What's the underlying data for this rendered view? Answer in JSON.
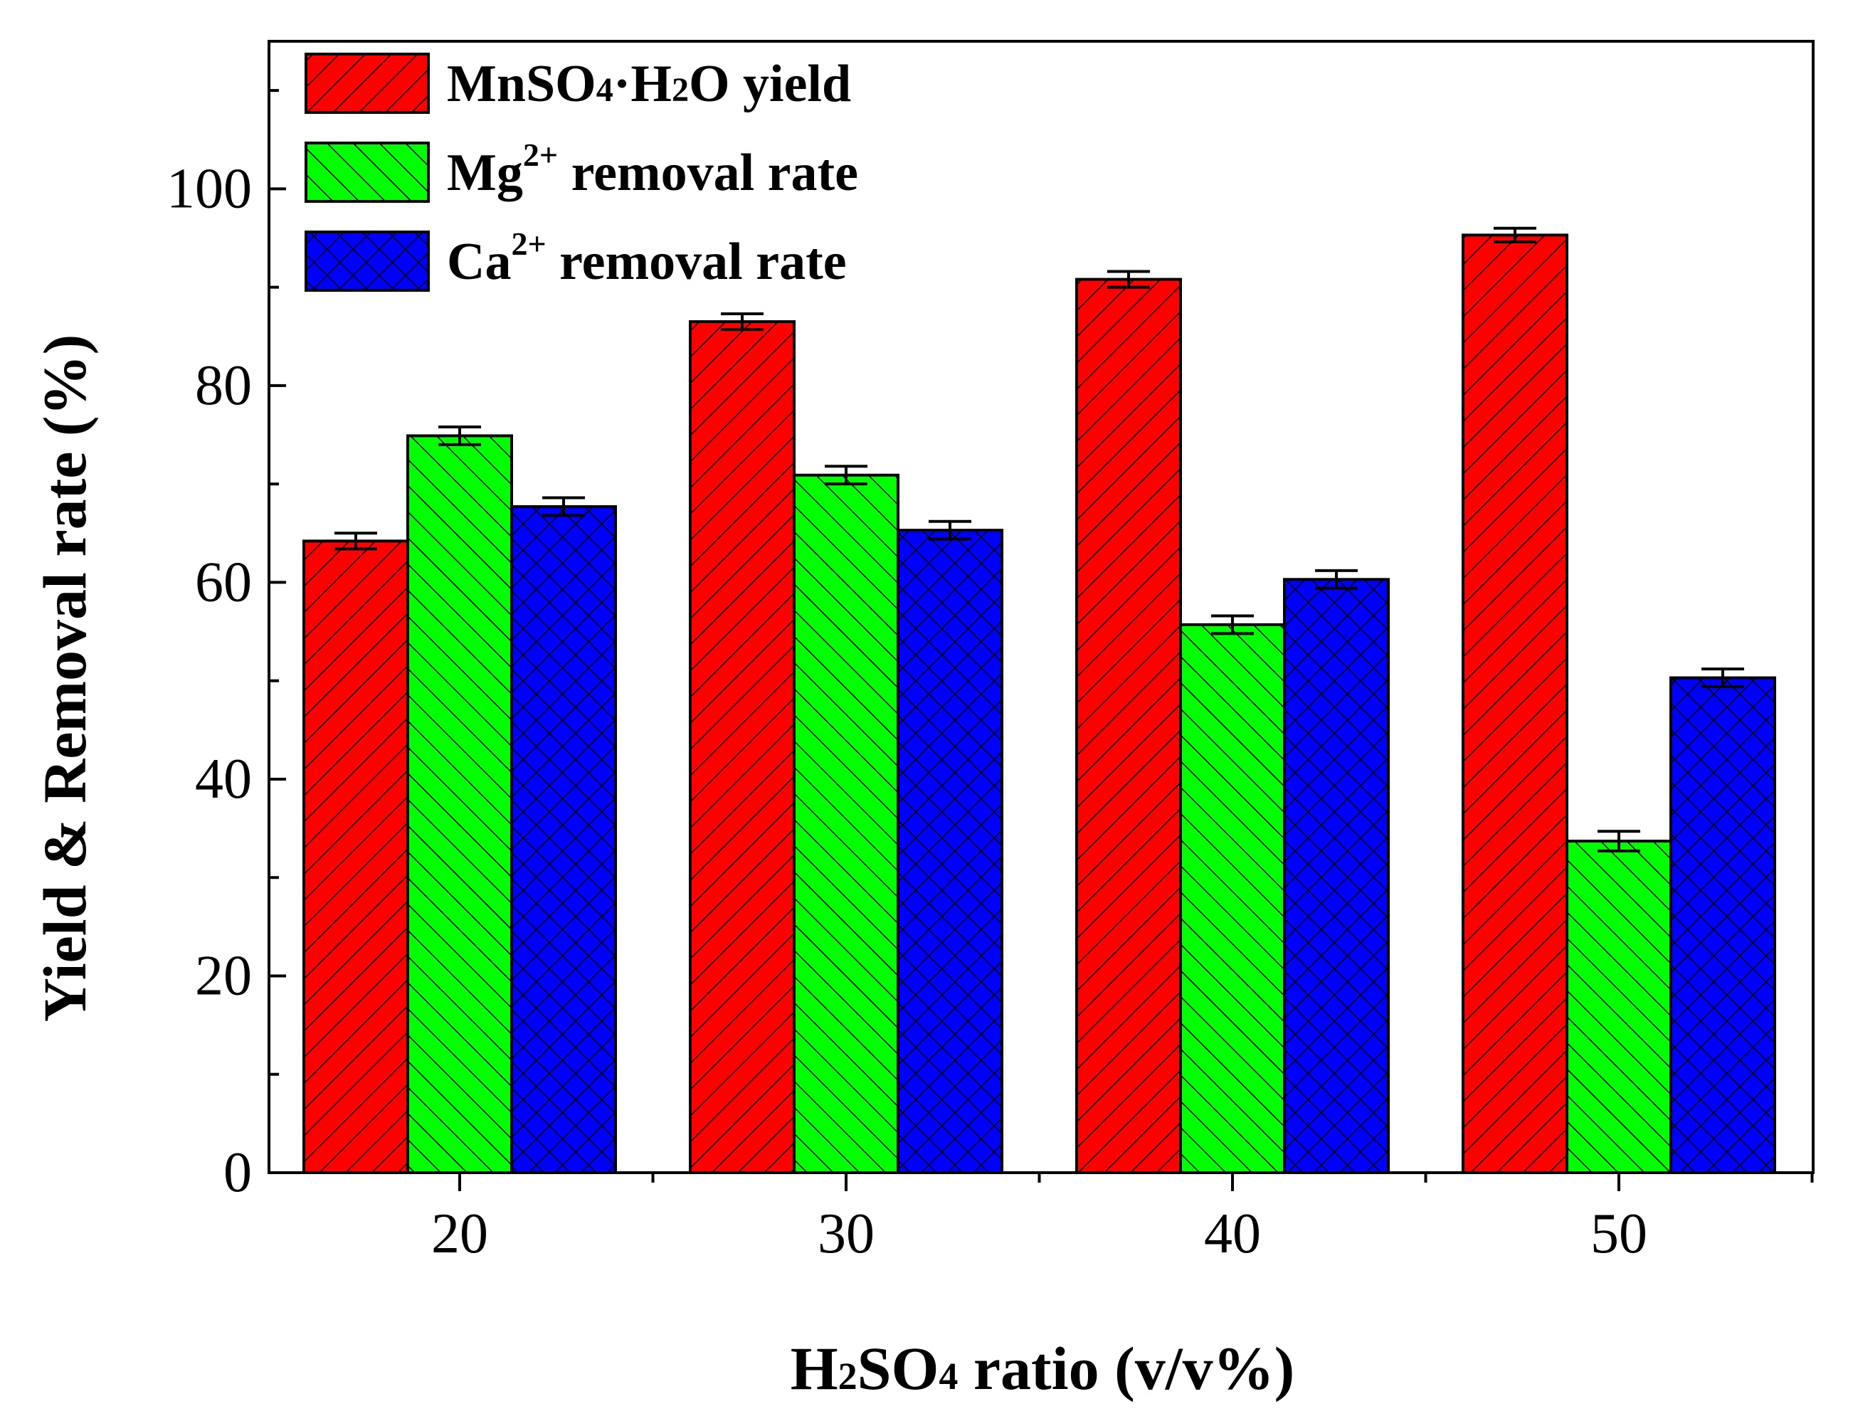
{
  "chart_data": {
    "type": "bar",
    "title": "",
    "xlabel": "H2SO4 ratio (v/v%)",
    "ylabel": "Yield & Removal rate (%)",
    "categories": [
      "20",
      "30",
      "40",
      "50"
    ],
    "ylim": [
      0,
      115
    ],
    "yticks": [
      "0",
      "20",
      "40",
      "60",
      "80",
      "100"
    ],
    "series": [
      {
        "name": "MnSO4·H2O yield",
        "legend_parts": [
          "MnSO",
          "4",
          "·H",
          "2",
          "O yield"
        ],
        "values": [
          64.2,
          86.5,
          90.8,
          95.3
        ],
        "errors": [
          0.8,
          0.8,
          0.8,
          0.7
        ],
        "color": "#ff0000",
        "hatch": "forward"
      },
      {
        "name": "Mg2+ removal rate",
        "legend_parts": [
          "Mg",
          "2+",
          " removal rate"
        ],
        "values": [
          74.9,
          70.9,
          55.7,
          33.7
        ],
        "errors": [
          0.9,
          0.9,
          0.9,
          1.0
        ],
        "color": "#00ff00",
        "hatch": "backward"
      },
      {
        "name": "Ca2+ removal rate",
        "legend_parts": [
          "Ca",
          "2+",
          " removal rate"
        ],
        "values": [
          67.7,
          65.3,
          60.3,
          50.3
        ],
        "errors": [
          0.9,
          0.9,
          0.9,
          0.9
        ],
        "color": "#0000ff",
        "hatch": "cross"
      }
    ],
    "xlabel_parts": [
      "H",
      "2",
      "SO",
      "4",
      " ratio (v/v%)"
    ],
    "legend_position": "top-left",
    "grid": false
  }
}
